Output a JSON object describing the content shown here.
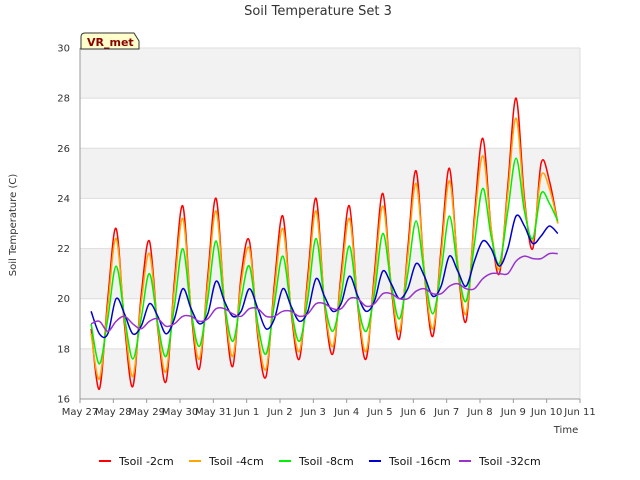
{
  "chart_data": {
    "type": "line",
    "title": "Soil Temperature Set 3",
    "xlabel": "Time",
    "ylabel": "Soil Temperature (C)",
    "badge": "VR_met",
    "x_ticks": [
      "May 27",
      "May 28",
      "May 29",
      "May 30",
      "May 31",
      "Jun 1",
      "Jun 2",
      "Jun 3",
      "Jun 4",
      "Jun 5",
      "Jun 6",
      "Jun 7",
      "Jun 8",
      "Jun 9",
      "Jun 10",
      "Jun 11"
    ],
    "xlim": [
      "May 27",
      "Jun 11"
    ],
    "y_ticks": [
      16,
      18,
      20,
      22,
      24,
      26,
      28,
      30
    ],
    "ylim": [
      16,
      30
    ],
    "grid": true,
    "legend_position": "bottom",
    "x": [
      "May 27 08:00",
      "May 27 14:00",
      "May 27 20:00",
      "May 28 02:00",
      "May 28 08:00",
      "May 28 14:00",
      "May 28 20:00",
      "May 29 02:00",
      "May 29 08:00",
      "May 29 14:00",
      "May 29 20:00",
      "May 30 02:00",
      "May 30 08:00",
      "May 30 14:00",
      "May 30 20:00",
      "May 31 02:00",
      "May 31 08:00",
      "May 31 14:00",
      "May 31 20:00",
      "Jun 1 02:00",
      "Jun 1 08:00",
      "Jun 1 14:00",
      "Jun 1 20:00",
      "Jun 2 02:00",
      "Jun 2 08:00",
      "Jun 2 14:00",
      "Jun 2 20:00",
      "Jun 3 02:00",
      "Jun 3 08:00",
      "Jun 3 14:00",
      "Jun 3 20:00",
      "Jun 4 02:00",
      "Jun 4 08:00",
      "Jun 4 14:00",
      "Jun 4 20:00",
      "Jun 5 02:00",
      "Jun 5 08:00",
      "Jun 5 14:00",
      "Jun 5 20:00",
      "Jun 6 02:00",
      "Jun 6 08:00",
      "Jun 6 14:00",
      "Jun 6 20:00",
      "Jun 7 02:00",
      "Jun 7 08:00",
      "Jun 7 14:00",
      "Jun 7 20:00",
      "Jun 8 02:00",
      "Jun 8 08:00",
      "Jun 8 14:00",
      "Jun 8 20:00",
      "Jun 9 02:00",
      "Jun 9 08:00",
      "Jun 9 14:00",
      "Jun 9 20:00",
      "Jun 10 02:00",
      "Jun 10 08:00"
    ],
    "series": [
      {
        "name": "Tsoil -2cm",
        "color": "#ff0000",
        "values": [
          18.8,
          16.4,
          20.0,
          22.8,
          19.0,
          16.5,
          20.1,
          22.3,
          18.8,
          16.7,
          20.7,
          23.7,
          19.5,
          17.2,
          20.9,
          24.0,
          19.8,
          17.3,
          20.9,
          22.3,
          18.5,
          16.9,
          20.6,
          23.3,
          19.5,
          17.6,
          20.9,
          24.0,
          19.8,
          17.8,
          21.0,
          23.7,
          19.7,
          17.6,
          21.0,
          24.2,
          20.5,
          18.4,
          22.0,
          25.1,
          21.0,
          18.5,
          22.0,
          25.2,
          21.3,
          19.1,
          23.3,
          26.4,
          22.8,
          21.0,
          24.5,
          28.0,
          24.0,
          22.0,
          25.4,
          24.7,
          23.0
        ]
      },
      {
        "name": "Tsoil -4cm",
        "color": "#ffa500",
        "values": [
          18.6,
          16.8,
          19.7,
          22.4,
          19.2,
          16.9,
          19.8,
          21.8,
          18.9,
          17.1,
          20.4,
          23.2,
          19.6,
          17.6,
          20.6,
          23.5,
          19.9,
          17.7,
          20.6,
          22.0,
          18.7,
          17.2,
          20.3,
          22.8,
          19.6,
          17.9,
          20.6,
          23.5,
          19.9,
          18.1,
          20.7,
          23.2,
          19.8,
          17.9,
          20.7,
          23.7,
          20.6,
          18.7,
          21.7,
          24.6,
          21.1,
          18.8,
          21.7,
          24.7,
          21.4,
          19.4,
          23.0,
          25.7,
          22.8,
          21.2,
          24.2,
          27.2,
          23.8,
          22.3,
          24.9,
          24.4,
          23.0
        ]
      },
      {
        "name": "Tsoil -8cm",
        "color": "#00ee00",
        "values": [
          19.0,
          17.4,
          19.2,
          21.3,
          19.3,
          17.6,
          19.2,
          21.0,
          19.0,
          17.7,
          19.7,
          22.0,
          19.5,
          18.1,
          20.0,
          22.3,
          19.8,
          18.3,
          20.0,
          21.3,
          19.0,
          17.8,
          19.8,
          21.7,
          19.6,
          18.3,
          20.0,
          22.4,
          19.9,
          18.7,
          20.1,
          22.1,
          19.8,
          18.7,
          20.2,
          22.6,
          20.6,
          19.2,
          21.0,
          23.1,
          21.0,
          19.4,
          21.1,
          23.3,
          21.2,
          19.9,
          22.2,
          24.4,
          22.5,
          21.4,
          23.5,
          25.6,
          23.5,
          22.4,
          24.2,
          23.8,
          23.1
        ]
      },
      {
        "name": "Tsoil -16cm",
        "color": "#0000cc",
        "values": [
          19.5,
          18.6,
          18.6,
          20.0,
          19.4,
          18.6,
          18.9,
          19.8,
          19.3,
          18.6,
          19.2,
          20.4,
          19.6,
          19.0,
          19.4,
          20.7,
          19.9,
          19.3,
          19.5,
          20.4,
          19.6,
          18.8,
          19.2,
          20.4,
          19.7,
          19.1,
          19.5,
          20.8,
          20.1,
          19.5,
          19.8,
          20.9,
          20.1,
          19.5,
          19.9,
          21.1,
          20.6,
          20.0,
          20.4,
          21.4,
          20.9,
          20.1,
          20.5,
          21.7,
          21.1,
          20.5,
          21.5,
          22.3,
          22.0,
          21.3,
          22.0,
          23.3,
          22.9,
          22.2,
          22.5,
          22.9,
          22.6
        ]
      },
      {
        "name": "Tsoil -32cm",
        "color": "#9933cc",
        "values": [
          19.0,
          19.1,
          18.7,
          19.1,
          19.3,
          19.0,
          18.8,
          19.1,
          19.2,
          18.9,
          19.0,
          19.3,
          19.3,
          19.1,
          19.2,
          19.6,
          19.6,
          19.4,
          19.3,
          19.6,
          19.6,
          19.3,
          19.3,
          19.5,
          19.5,
          19.3,
          19.4,
          19.8,
          19.8,
          19.6,
          19.6,
          20.0,
          20.0,
          19.7,
          19.8,
          20.2,
          20.2,
          20.0,
          20.0,
          20.3,
          20.4,
          20.2,
          20.2,
          20.5,
          20.6,
          20.4,
          20.4,
          20.8,
          21.0,
          21.0,
          21.0,
          21.5,
          21.7,
          21.6,
          21.6,
          21.8,
          21.8
        ]
      }
    ]
  }
}
